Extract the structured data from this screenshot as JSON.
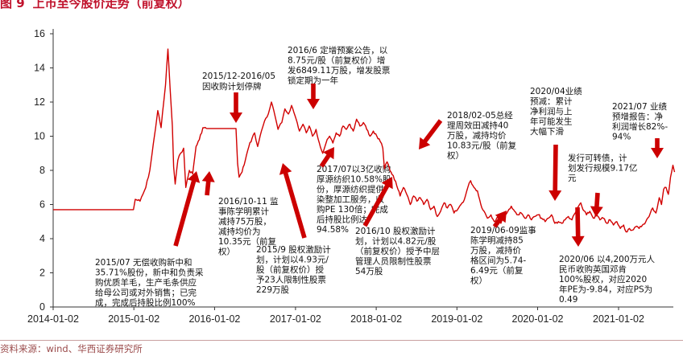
{
  "figure": {
    "number": "图 9",
    "title": "上市至今股价走势（前复权）",
    "source": "资料来源：wind、华西证券研究所"
  },
  "colors": {
    "line": "#d10000",
    "arrow": "#cc0000",
    "axis": "#333333",
    "text": "#111111"
  },
  "chart_data": {
    "type": "line",
    "title": "",
    "xlabel": "",
    "ylabel": "",
    "x_ticks": [
      "2014-01-02",
      "2015-01-02",
      "2016-01-02",
      "2017-01-02",
      "2018-01-02",
      "2019-01-02",
      "2020-01-02",
      "2021-01-02"
    ],
    "y_ticks": [
      0,
      2,
      4,
      6,
      8,
      10,
      12,
      14,
      16
    ],
    "xlim": [
      "2014-01-02",
      "2021-09-15"
    ],
    "ylim": [
      0,
      16.5
    ],
    "grid": false,
    "legend": "none",
    "series": [
      {
        "name": "",
        "points": [
          [
            "2014-01-02",
            5.7
          ],
          [
            "2014-06-01",
            5.7
          ],
          [
            "2014-12-31",
            5.7
          ],
          [
            "2015-01-08",
            6.3
          ],
          [
            "2015-01-30",
            6.2
          ],
          [
            "2015-02-25",
            7.0
          ],
          [
            "2015-03-15",
            8.0
          ],
          [
            "2015-04-05",
            10.0
          ],
          [
            "2015-04-20",
            11.5
          ],
          [
            "2015-05-05",
            10.5
          ],
          [
            "2015-05-25",
            13.0
          ],
          [
            "2015-06-05",
            15.1
          ],
          [
            "2015-06-15",
            12.8
          ],
          [
            "2015-06-25",
            10.6
          ],
          [
            "2015-07-01",
            8.2
          ],
          [
            "2015-07-08",
            7.2
          ],
          [
            "2015-07-20",
            8.6
          ],
          [
            "2015-08-01",
            9.0
          ],
          [
            "2015-08-15",
            9.3
          ],
          [
            "2015-08-25",
            7.0
          ],
          [
            "2015-09-10",
            8.0
          ],
          [
            "2015-09-25",
            7.8
          ],
          [
            "2015-10-10",
            9.4
          ],
          [
            "2015-10-25",
            9.8
          ],
          [
            "2015-11-10",
            10.5
          ],
          [
            "2015-12-01",
            10.45
          ],
          [
            "2015-12-31",
            10.45
          ],
          [
            "2016-02-01",
            10.45
          ],
          [
            "2016-03-01",
            10.45
          ],
          [
            "2016-04-08",
            10.45
          ],
          [
            "2016-04-15",
            8.4
          ],
          [
            "2016-04-22",
            7.6
          ],
          [
            "2016-05-05",
            7.9
          ],
          [
            "2016-05-20",
            8.6
          ],
          [
            "2016-06-05",
            9.4
          ],
          [
            "2016-06-20",
            9.9
          ],
          [
            "2016-07-01",
            10.2
          ],
          [
            "2016-07-15",
            9.4
          ],
          [
            "2016-08-01",
            10.3
          ],
          [
            "2016-08-15",
            10.9
          ],
          [
            "2016-09-01",
            11.3
          ],
          [
            "2016-09-15",
            12.0
          ],
          [
            "2016-10-01",
            11.2
          ],
          [
            "2016-10-15",
            10.4
          ],
          [
            "2016-11-01",
            10.8
          ],
          [
            "2016-11-15",
            11.6
          ],
          [
            "2016-12-01",
            11.3
          ],
          [
            "2016-12-15",
            11.8
          ],
          [
            "2017-01-05",
            11.0
          ],
          [
            "2017-01-20",
            10.3
          ],
          [
            "2017-02-05",
            10.7
          ],
          [
            "2017-02-20",
            10.2
          ],
          [
            "2017-03-05",
            10.6
          ],
          [
            "2017-03-20",
            10.0
          ],
          [
            "2017-04-05",
            10.4
          ],
          [
            "2017-04-20",
            9.6
          ],
          [
            "2017-05-05",
            9.0
          ],
          [
            "2017-05-20",
            9.6
          ],
          [
            "2017-06-05",
            10.0
          ],
          [
            "2017-06-20",
            9.6
          ],
          [
            "2017-07-05",
            10.2
          ],
          [
            "2017-07-20",
            10.0
          ],
          [
            "2017-08-05",
            10.6
          ],
          [
            "2017-08-20",
            10.4
          ],
          [
            "2017-09-05",
            10.7
          ],
          [
            "2017-09-20",
            10.3
          ],
          [
            "2017-10-05",
            11.0
          ],
          [
            "2017-10-20",
            10.6
          ],
          [
            "2017-11-05",
            10.8
          ],
          [
            "2017-11-20",
            10.4
          ],
          [
            "2017-12-05",
            10.0
          ],
          [
            "2017-12-20",
            10.3
          ],
          [
            "2018-01-05",
            10.0
          ],
          [
            "2018-01-20",
            9.7
          ],
          [
            "2018-02-01",
            9.3
          ],
          [
            "2018-02-08",
            8.1
          ],
          [
            "2018-02-20",
            8.5
          ],
          [
            "2018-03-05",
            8.0
          ],
          [
            "2018-03-20",
            7.7
          ],
          [
            "2018-04-05",
            7.1
          ],
          [
            "2018-04-20",
            6.5
          ],
          [
            "2018-05-05",
            7.0
          ],
          [
            "2018-05-20",
            6.6
          ],
          [
            "2018-06-05",
            6.0
          ],
          [
            "2018-06-20",
            6.5
          ],
          [
            "2018-07-05",
            6.2
          ],
          [
            "2018-07-20",
            6.4
          ],
          [
            "2018-08-05",
            6.0
          ],
          [
            "2018-08-20",
            6.3
          ],
          [
            "2018-09-05",
            5.7
          ],
          [
            "2018-09-20",
            5.9
          ],
          [
            "2018-10-05",
            5.3
          ],
          [
            "2018-10-20",
            5.6
          ],
          [
            "2018-11-05",
            6.1
          ],
          [
            "2018-11-20",
            5.8
          ],
          [
            "2018-12-05",
            6.0
          ],
          [
            "2018-12-20",
            5.5
          ],
          [
            "2019-01-05",
            5.7
          ],
          [
            "2019-01-20",
            6.0
          ],
          [
            "2019-02-05",
            6.3
          ],
          [
            "2019-02-20",
            7.0
          ],
          [
            "2019-03-05",
            7.4
          ],
          [
            "2019-03-20",
            7.0
          ],
          [
            "2019-04-05",
            6.8
          ],
          [
            "2019-04-20",
            6.0
          ],
          [
            "2019-05-05",
            5.6
          ],
          [
            "2019-05-20",
            5.2
          ],
          [
            "2019-06-05",
            5.4
          ],
          [
            "2019-06-20",
            5.0
          ],
          [
            "2019-07-05",
            5.3
          ],
          [
            "2019-07-20",
            4.9
          ],
          [
            "2019-08-05",
            5.3
          ],
          [
            "2019-08-20",
            5.6
          ],
          [
            "2019-09-05",
            5.9
          ],
          [
            "2019-09-20",
            5.6
          ],
          [
            "2019-10-05",
            5.4
          ],
          [
            "2019-10-20",
            5.5
          ],
          [
            "2019-11-05",
            5.2
          ],
          [
            "2019-11-20",
            5.4
          ],
          [
            "2019-12-05",
            5.1
          ],
          [
            "2019-12-20",
            5.3
          ],
          [
            "2020-01-05",
            5.4
          ],
          [
            "2020-01-20",
            5.2
          ],
          [
            "2020-02-05",
            5.0
          ],
          [
            "2020-02-20",
            5.2
          ],
          [
            "2020-03-05",
            5.4
          ],
          [
            "2020-03-20",
            4.9
          ],
          [
            "2020-04-05",
            5.0
          ],
          [
            "2020-04-20",
            4.9
          ],
          [
            "2020-05-05",
            5.1
          ],
          [
            "2020-05-20",
            5.3
          ],
          [
            "2020-06-05",
            5.1
          ],
          [
            "2020-06-20",
            5.5
          ],
          [
            "2020-07-05",
            5.9
          ],
          [
            "2020-07-15",
            6.1
          ],
          [
            "2020-07-25",
            5.7
          ],
          [
            "2020-08-10",
            5.4
          ],
          [
            "2020-08-25",
            5.6
          ],
          [
            "2020-09-10",
            5.2
          ],
          [
            "2020-09-25",
            5.4
          ],
          [
            "2020-10-10",
            5.1
          ],
          [
            "2020-10-25",
            5.2
          ],
          [
            "2020-11-10",
            4.9
          ],
          [
            "2020-11-25",
            5.1
          ],
          [
            "2020-12-10",
            4.8
          ],
          [
            "2020-12-25",
            5.0
          ],
          [
            "2021-01-10",
            4.6
          ],
          [
            "2021-01-25",
            4.8
          ],
          [
            "2021-02-05",
            4.4
          ],
          [
            "2021-02-20",
            4.6
          ],
          [
            "2021-03-05",
            4.5
          ],
          [
            "2021-03-20",
            4.7
          ],
          [
            "2021-04-05",
            4.6
          ],
          [
            "2021-04-20",
            4.8
          ],
          [
            "2021-05-05",
            5.0
          ],
          [
            "2021-05-20",
            5.3
          ],
          [
            "2021-06-05",
            5.8
          ],
          [
            "2021-06-20",
            5.5
          ],
          [
            "2021-07-05",
            6.4
          ],
          [
            "2021-07-15",
            6.0
          ],
          [
            "2021-07-25",
            6.9
          ],
          [
            "2021-08-05",
            7.0
          ],
          [
            "2021-08-15",
            6.6
          ],
          [
            "2021-08-25",
            7.6
          ],
          [
            "2021-09-05",
            8.3
          ],
          [
            "2021-09-12",
            7.9
          ]
        ]
      }
    ]
  },
  "annotations": [
    {
      "id": "a1",
      "lines": [
        "2015/07 无偿收购新中和",
        "35.71%股份，新中和负责采",
        "购优质羊毛，生产毛条供应",
        "给母公司或对外销售；已完",
        "成，完成后持股比例100%"
      ]
    },
    {
      "id": "a2",
      "lines": [
        "2015/12-2016/05",
        "因收购计划停牌"
      ]
    },
    {
      "id": "a3",
      "lines": [
        "2016/10-11 监",
        "事陈学明累计",
        "减持75万股，",
        "减持均价为",
        "10.35元（前复",
        "权）"
      ]
    },
    {
      "id": "a4",
      "lines": [
        "2015/9 股权激励计",
        "划，计划以4.93元/",
        "股（前复权价）授",
        "予23人限制性股票",
        "229万股"
      ]
    },
    {
      "id": "a5",
      "lines": [
        "2016/6 定增预案公告，以",
        "8.75元/股（前复权价）增",
        "发6849.11万股，增发股票",
        "锁定期为一年"
      ]
    },
    {
      "id": "a6",
      "lines": [
        "2017/07以3亿收购",
        "厚源纺织10.58%股",
        "份，厚源纺织提供",
        "染整加工服务，收",
        "购PE 130倍；完成",
        "后持股比例达",
        "94.58%"
      ]
    },
    {
      "id": "a7",
      "lines": [
        "2016/10 股权激励计",
        "划，计划以4.82元/股",
        "（前复权价）授予中层",
        "管理人员限制性股票",
        "54万股"
      ]
    },
    {
      "id": "a8",
      "lines": [
        "2018/02-05总经",
        "理周效田减持40",
        "万股，减持均价",
        "10.83元/股（前复",
        "权）"
      ]
    },
    {
      "id": "a9",
      "lines": [
        "2019/06-09监事",
        "陈学明减持85",
        "万股，减持价",
        "格区间为5.74-",
        "6.49元（前复",
        "权）"
      ]
    },
    {
      "id": "a10",
      "lines": [
        "2020/04业绩",
        "预减：累计",
        "净利润与上",
        "年可能发生",
        "大幅下滑"
      ]
    },
    {
      "id": "a11",
      "lines": [
        "发行可转债，计",
        "划发行规模9.17亿",
        "元"
      ]
    },
    {
      "id": "a12",
      "lines": [
        "2021/07 业绩",
        "预增报告：净",
        "利润增长82%-",
        "94%"
      ]
    },
    {
      "id": "a13",
      "lines": [
        "2020/06 以4,200万元人",
        "民币收购英国邓肯",
        "100%股权，对应2020",
        "年PE为-9.84，对应PS为",
        "0.49"
      ]
    }
  ]
}
